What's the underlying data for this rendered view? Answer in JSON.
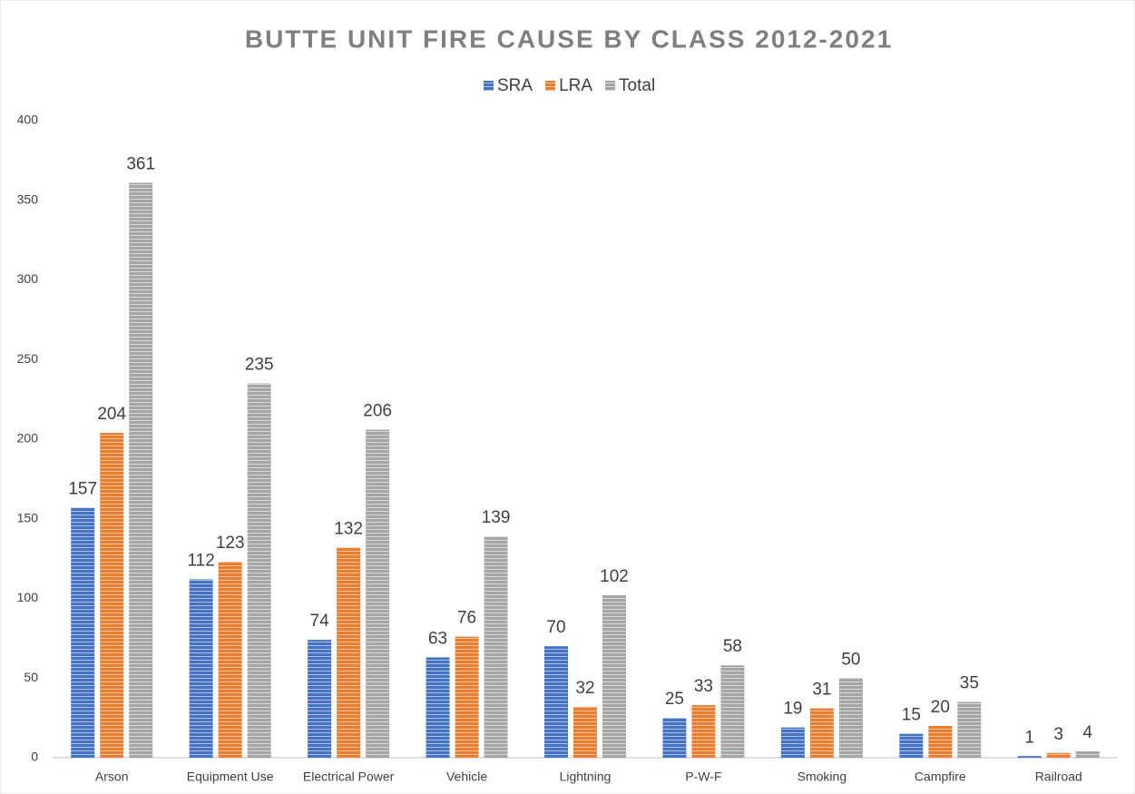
{
  "chart_data": {
    "type": "bar",
    "title": "BUTTE UNIT FIRE CAUSE BY CLASS 2012-2021",
    "categories": [
      "Arson",
      "Equipment Use",
      "Electrical Power",
      "Vehicle",
      "Lightning",
      "P-W-F",
      "Smoking",
      "Campfire",
      "Railroad"
    ],
    "series": [
      {
        "name": "SRA",
        "color": "#4472c4",
        "values": [
          157,
          112,
          74,
          63,
          70,
          25,
          19,
          15,
          1
        ]
      },
      {
        "name": "LRA",
        "color": "#ed7d31",
        "values": [
          204,
          123,
          132,
          76,
          32,
          33,
          31,
          20,
          3
        ]
      },
      {
        "name": "Total",
        "color": "#a5a5a5",
        "values": [
          361,
          235,
          206,
          139,
          102,
          58,
          50,
          35,
          4
        ]
      }
    ],
    "ylim": [
      0,
      400
    ],
    "yticks": [
      0,
      50,
      100,
      150,
      200,
      250,
      300,
      350,
      400
    ],
    "grid": false,
    "legend": "top"
  }
}
